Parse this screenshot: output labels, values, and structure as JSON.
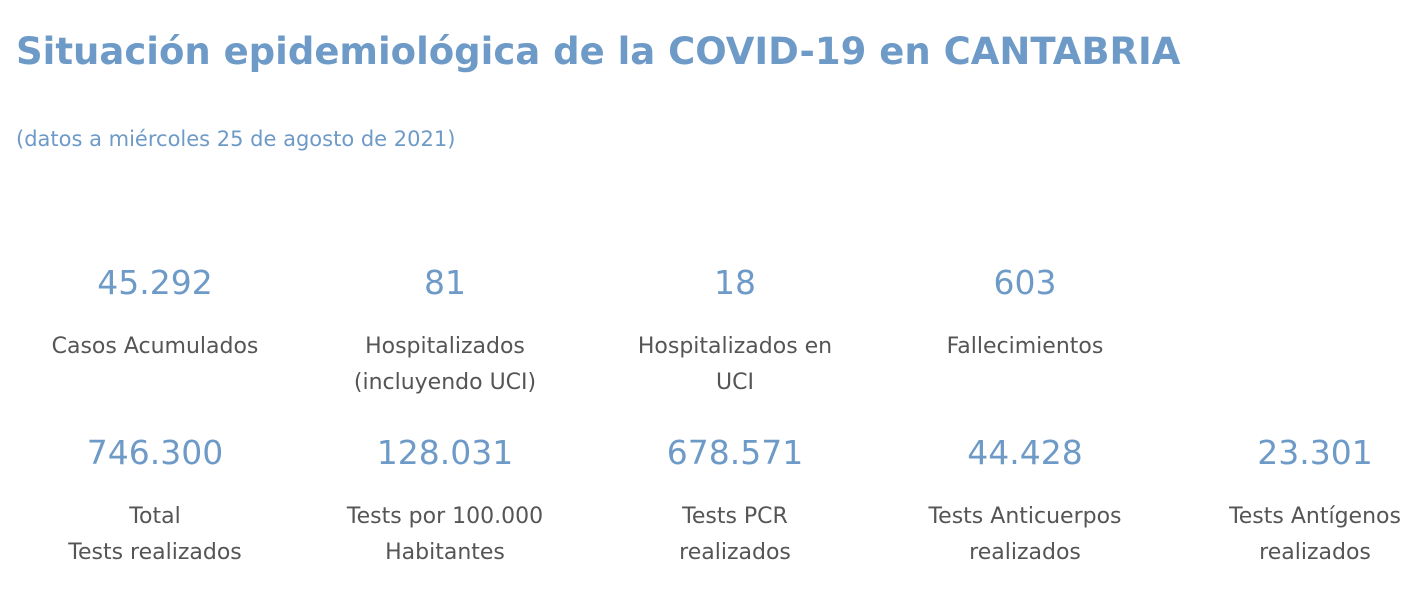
{
  "header": {
    "title": "Situación epidemiológica de la COVID-19 en CANTABRIA",
    "subtitle": "(datos a miércoles 25 de agosto de 2021)"
  },
  "rows": [
    [
      {
        "value": "45.292",
        "label": [
          "Casos Acumulados"
        ]
      },
      {
        "value": "81",
        "label": [
          "Hospitalizados",
          "(incluyendo UCI)"
        ]
      },
      {
        "value": "18",
        "label": [
          "Hospitalizados en",
          "UCI"
        ]
      },
      {
        "value": "603",
        "label": [
          "Fallecimientos"
        ]
      }
    ],
    [
      {
        "value": "746.300",
        "label": [
          "Total",
          "Tests realizados"
        ]
      },
      {
        "value": "128.031",
        "label": [
          "Tests por 100.000",
          "Habitantes"
        ]
      },
      {
        "value": "678.571",
        "label": [
          "Tests PCR",
          "realizados"
        ]
      },
      {
        "value": "44.428",
        "label": [
          "Tests Anticuerpos",
          "realizados"
        ]
      },
      {
        "value": "23.301",
        "label": [
          "Tests Antígenos",
          "realizados"
        ]
      }
    ]
  ]
}
